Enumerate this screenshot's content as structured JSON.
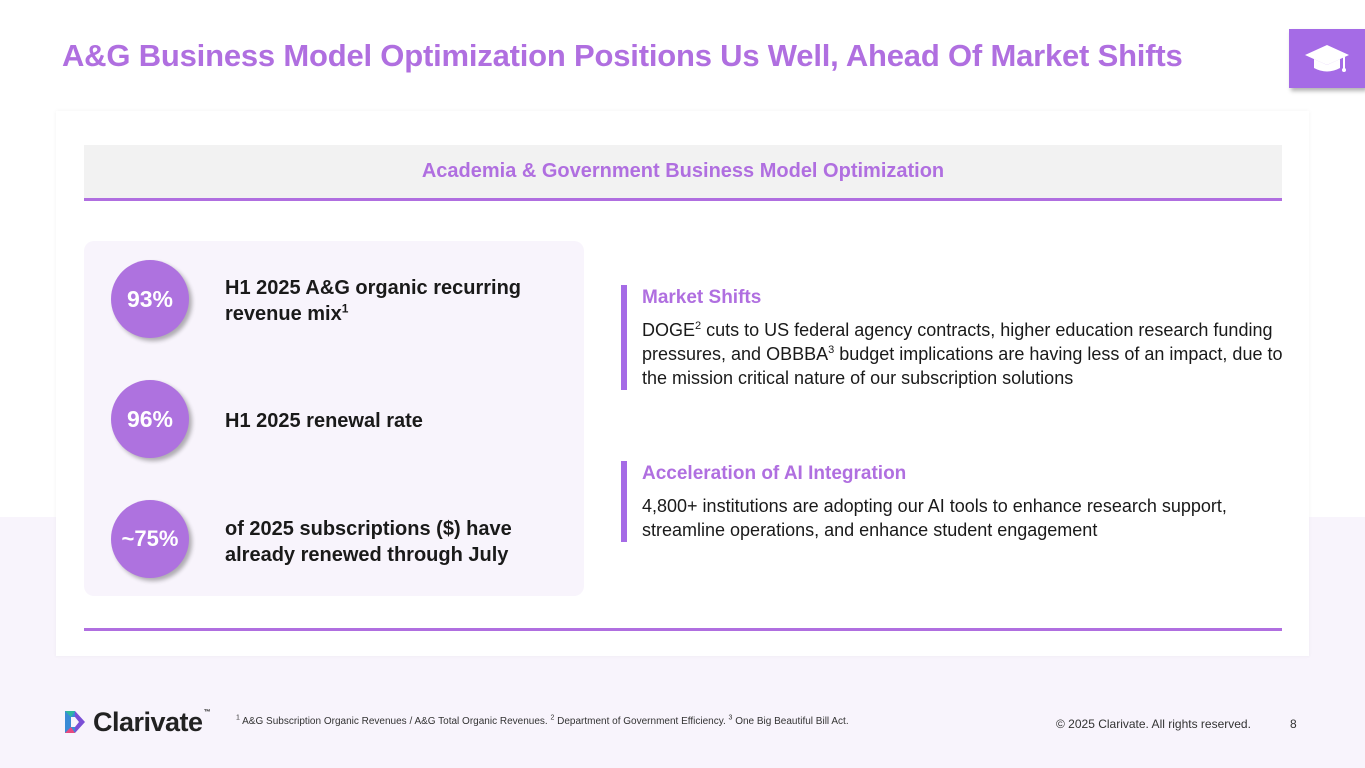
{
  "title": "A&G Business Model Optimization Positions Us Well, Ahead Of Market Shifts",
  "icons": {
    "badge": "graduation-cap-icon",
    "logo": "clarivate-logo-icon"
  },
  "colors": {
    "accent": "#b06fe0",
    "circle": "#ae72df",
    "badge": "#a56be6",
    "panel": "#f8f4fc"
  },
  "section_header": "Academia & Government Business Model Optimization",
  "stats": [
    {
      "value": "93%",
      "label": "H1 2025 A&G organic recurring revenue mix",
      "sup": "1"
    },
    {
      "value": "96%",
      "label": "H1 2025 renewal rate",
      "sup": ""
    },
    {
      "value": "~75%",
      "label": "of 2025 subscriptions ($) have already renewed through July",
      "sup": ""
    }
  ],
  "market_shifts": {
    "title": "Market Shifts",
    "text_a": "DOGE",
    "sup_a": "2",
    "text_b": " cuts to US federal agency contracts, higher education research funding pressures, and OBBBA",
    "sup_b": "3",
    "text_c": " budget implications are having less of an impact, due to the mission critical nature of our subscription solutions"
  },
  "ai_integration": {
    "title": "Acceleration of AI Integration",
    "text": "4,800+ institutions are adopting our AI tools to enhance research support, streamline operations, and enhance student engagement"
  },
  "footer": {
    "logo_text": "Clarivate",
    "logo_tm": "™",
    "footnotes": [
      {
        "num": "1",
        "text": " A&G Subscription Organic Revenues / A&G Total Organic Revenues. "
      },
      {
        "num": "2",
        "text": " Department of Government Efficiency. "
      },
      {
        "num": "3",
        "text": " One Big Beautiful Bill Act."
      }
    ],
    "copyright": "© 2025 Clarivate. All rights reserved.",
    "page_number": "8"
  }
}
